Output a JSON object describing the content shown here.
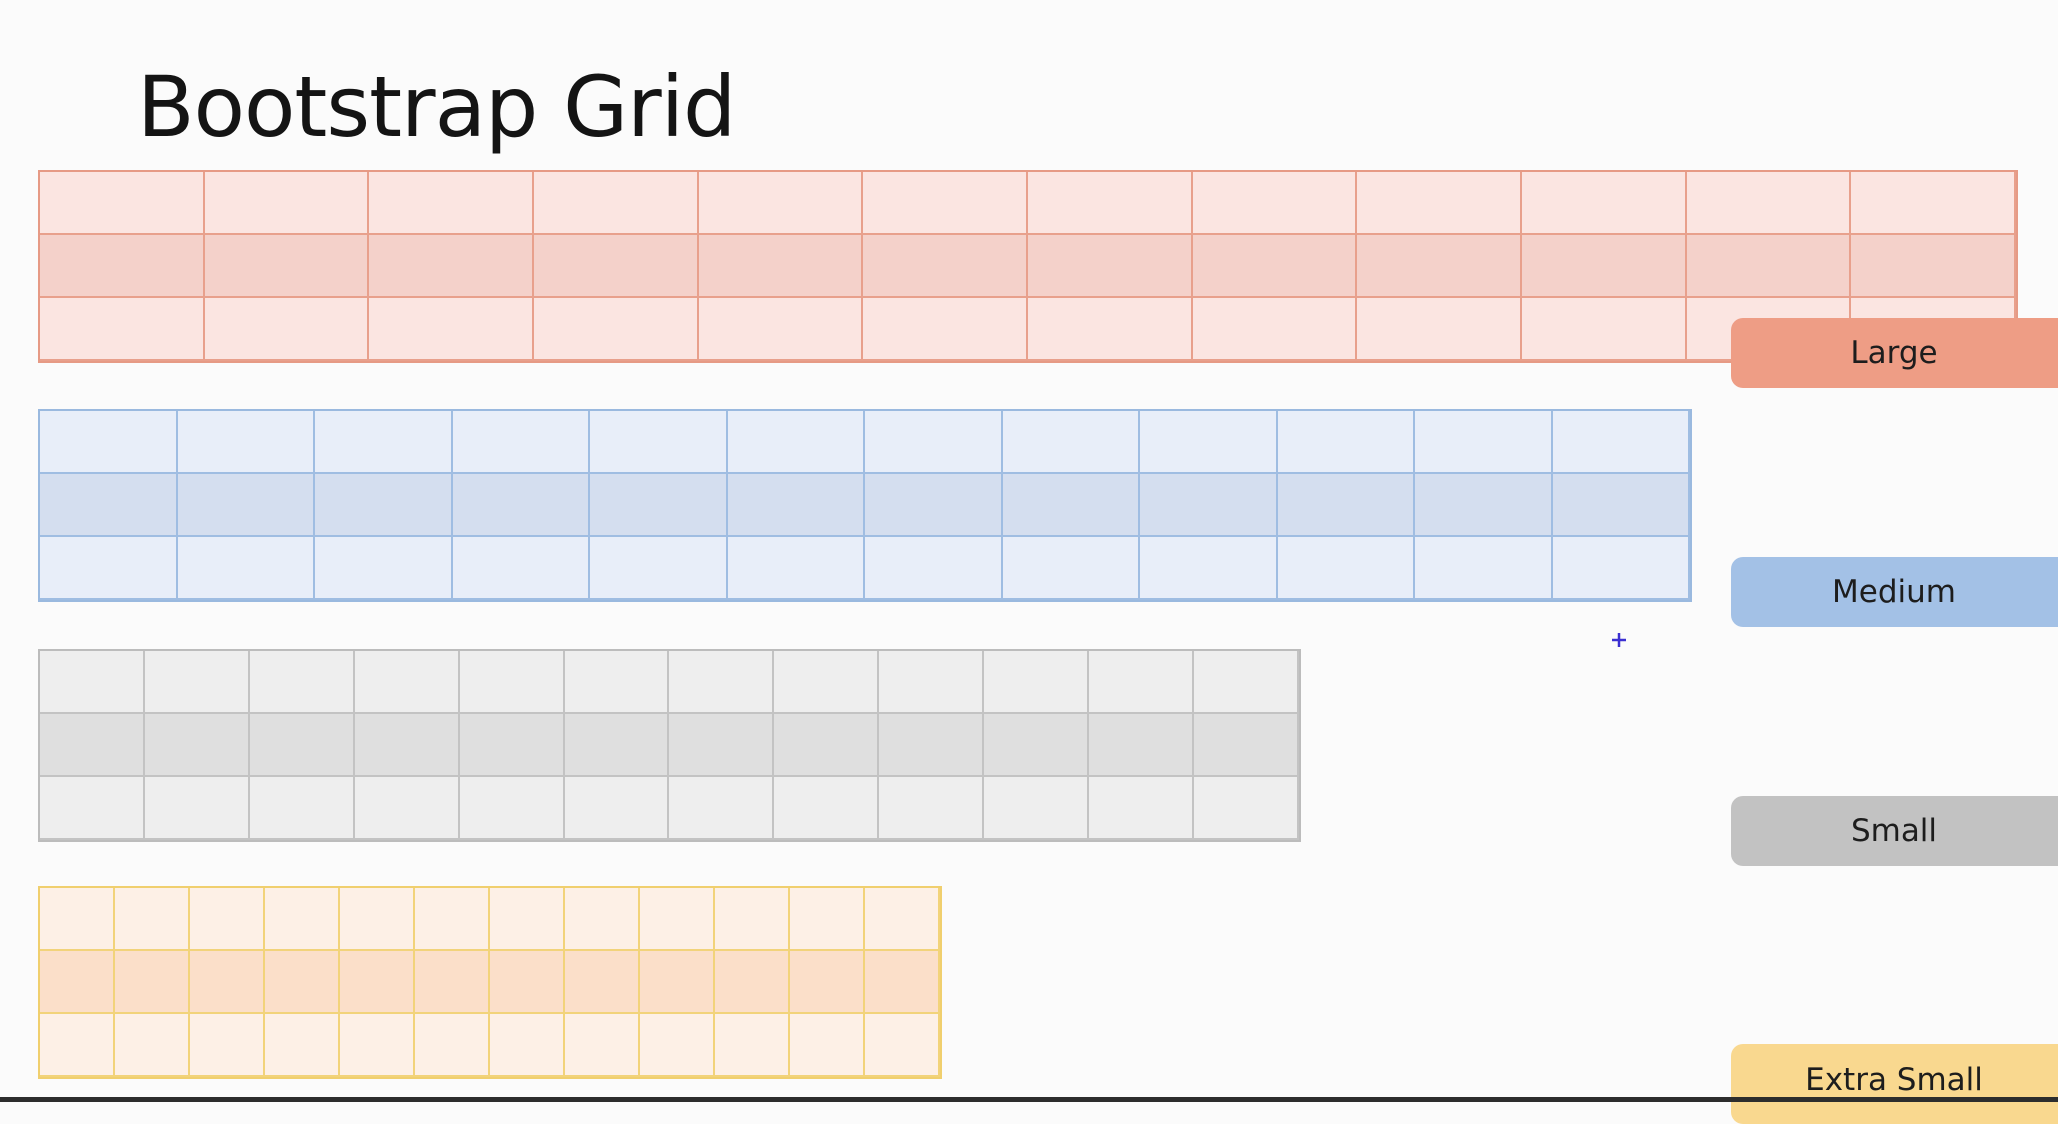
{
  "slide": {
    "title": "Bootstrap Grid",
    "grids": [
      {
        "id": "large",
        "label": "Large",
        "columns": 12,
        "rows": 3
      },
      {
        "id": "medium",
        "label": "Medium",
        "columns": 12,
        "rows": 3
      },
      {
        "id": "small",
        "label": "Small",
        "columns": 12,
        "rows": 3
      },
      {
        "id": "xsmall",
        "label": "Extra Small",
        "columns": 12,
        "rows": 3
      }
    ],
    "colors": {
      "large": "#ee9d85",
      "medium": "#a3c1e6",
      "small": "#c2c2c2",
      "extra_small": "#f9d88f"
    }
  }
}
